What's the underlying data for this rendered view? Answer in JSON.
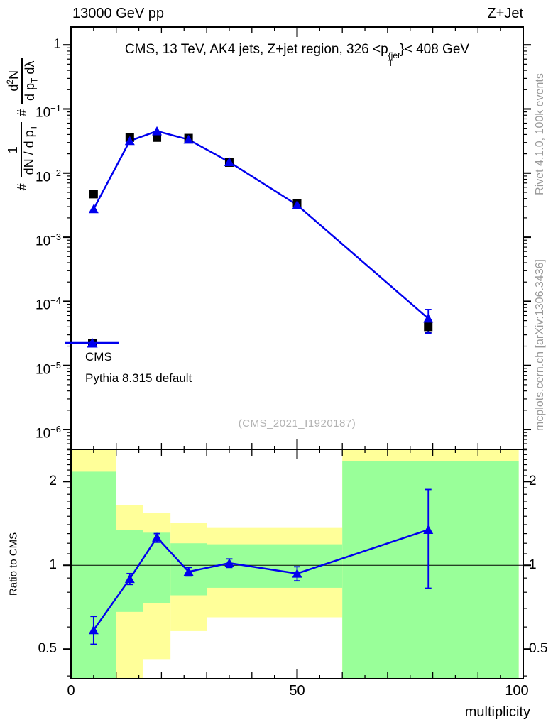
{
  "page": {
    "top_left_title": "13000 GeV pp",
    "top_right_title": "Z+Jet",
    "watermark": "(CMS_2021_I1920187)",
    "side_notes": {
      "top": "Rivet 4.1.0,  100k events",
      "bottom": "mcplots.cern.ch [arXiv:1306.3436]"
    }
  },
  "chart_data": {
    "type": "line",
    "title": {
      "pre": "CMS, 13 TeV, AK4 jets, Z+jet region, 326 <p",
      "sup": "{jet",
      "sub": "T",
      "post": "}< 408 GeV"
    },
    "y_formula": {
      "hash1": "#",
      "f1_num": "1",
      "f1_den_main": "dN / d p",
      "f1_den_sub": "T",
      "hash2": "#",
      "f2_num_main": "d",
      "f2_num_sup": "2",
      "f2_num_tail": "N",
      "f2_den_main": "d p",
      "f2_den_sub": "T",
      "f2_den_tail": " dλ"
    },
    "xlabel": "multiplicity",
    "x_range": [
      0,
      100
    ],
    "x_labeled_ticks": [
      0,
      50,
      100
    ],
    "x_major_step": 10,
    "x_minor_step": 5,
    "main_panel": {
      "y_scale": "log",
      "y_range": [
        4.9e-07,
        1.9
      ],
      "y_labeled_decades": [
        0,
        -1,
        -2,
        -3,
        -4,
        -5,
        -6
      ],
      "series": [
        {
          "name": "CMS",
          "marker": "square",
          "color": "#000000",
          "points": [
            {
              "x": 5,
              "y": 0.0047
            },
            {
              "x": 13,
              "y": 0.0356
            },
            {
              "x": 19,
              "y": 0.0358
            },
            {
              "x": 26,
              "y": 0.0351
            },
            {
              "x": 35,
              "y": 0.0146
            },
            {
              "x": 50,
              "y": 0.0034
            },
            {
              "x": 79,
              "y": 4e-05,
              "lo": 3.3e-05,
              "hi": 4.7e-05
            }
          ]
        },
        {
          "name": "Pythia 8.315 default",
          "marker": "triangle",
          "color": "#0000ee",
          "line": true,
          "points": [
            {
              "x": 5,
              "y": 0.00275
            },
            {
              "x": 13,
              "y": 0.0318
            },
            {
              "x": 19,
              "y": 0.0451
            },
            {
              "x": 26,
              "y": 0.0333
            },
            {
              "x": 35,
              "y": 0.0149
            },
            {
              "x": 50,
              "y": 0.00318
            },
            {
              "x": 79,
              "y": 5.4e-05,
              "lo": 3.2e-05,
              "hi": 7.45e-05
            }
          ]
        }
      ],
      "legend": [
        {
          "label": "CMS"
        },
        {
          "label": "Pythia 8.315 default"
        }
      ]
    },
    "ratio_panel": {
      "ylabel": "Ratio to CMS",
      "y_scale": "log",
      "y_range": [
        0.391,
        2.61
      ],
      "y_labeled_ticks": [
        0.5,
        1,
        2
      ],
      "reference_line": 1,
      "bands": [
        {
          "x0": 0,
          "x1": 10,
          "yellow": [
            0.3,
            3.0
          ],
          "green": [
            0.3,
            2.17
          ]
        },
        {
          "x0": 10,
          "x1": 16,
          "yellow": [
            0.3,
            1.65
          ],
          "green": [
            0.68,
            1.34
          ]
        },
        {
          "x0": 16,
          "x1": 22,
          "yellow": [
            0.46,
            1.54
          ],
          "green": [
            0.73,
            1.31
          ]
        },
        {
          "x0": 22,
          "x1": 30,
          "yellow": [
            0.58,
            1.42
          ],
          "green": [
            0.78,
            1.2
          ]
        },
        {
          "x0": 30,
          "x1": 60,
          "yellow": [
            0.65,
            1.37
          ],
          "green": [
            0.83,
            1.19
          ]
        },
        {
          "x0": 60,
          "x1": 99,
          "yellow": [
            0.3,
            3.0
          ],
          "green": [
            0.3,
            2.37
          ]
        }
      ],
      "points": [
        {
          "x": 5,
          "y": 0.585,
          "lo": 0.52,
          "hi": 0.655
        },
        {
          "x": 13,
          "y": 0.894,
          "lo": 0.853,
          "hi": 0.934
        },
        {
          "x": 19,
          "y": 1.26,
          "lo": 1.21,
          "hi": 1.3
        },
        {
          "x": 26,
          "y": 0.948,
          "lo": 0.915,
          "hi": 0.982
        },
        {
          "x": 35,
          "y": 1.018,
          "lo": 0.982,
          "hi": 1.054
        },
        {
          "x": 50,
          "y": 0.934,
          "lo": 0.879,
          "hi": 0.988
        },
        {
          "x": 79,
          "y": 1.342,
          "lo": 0.827,
          "hi": 1.873
        }
      ]
    },
    "colors": {
      "mc_line": "#0000ee",
      "data_marker": "#000000",
      "band_green": "#99ff99",
      "band_yellow": "#ffff99",
      "note_gray": "#999999",
      "watermark_gray": "#b3b3b3"
    }
  }
}
